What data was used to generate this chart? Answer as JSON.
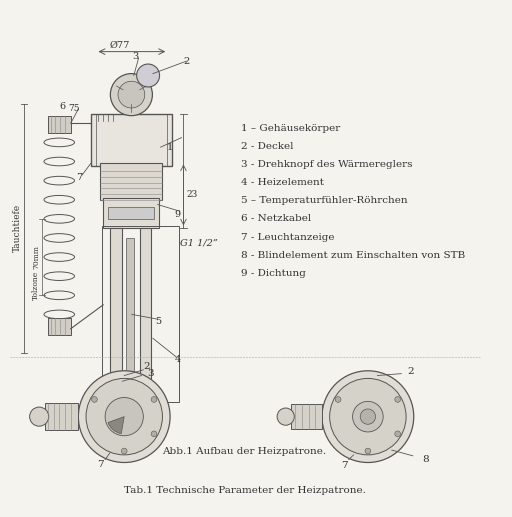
{
  "bg_color": "#f5f3ee",
  "line_color": "#555555",
  "title_bottom": "Tab.1 Technische Parameter der Heizpatrone.",
  "caption": "Abb.1 Aufbau der Heizpatrone.",
  "legend_items": [
    "1 – Gehäusekörper",
    "2 - Deckel",
    "3 - Drehknopf des Wärmereglers",
    "4 - Heizelement",
    "5 – Temperaturfühler-Röhrchen",
    "6 - Netzkabel",
    "7 - Leuchtanzeige",
    "8 - Blindelement zum Einschalten von STB",
    "9 - Dichtung"
  ],
  "dim_77": "Ø77",
  "dim_g1": "G1 1/2”",
  "dim_23": "23",
  "dim_70mm": "70mm",
  "dim_75": "75",
  "dim_tolzone": "Tolzone",
  "dim_tauchtiefe": "Tauchtiefe"
}
